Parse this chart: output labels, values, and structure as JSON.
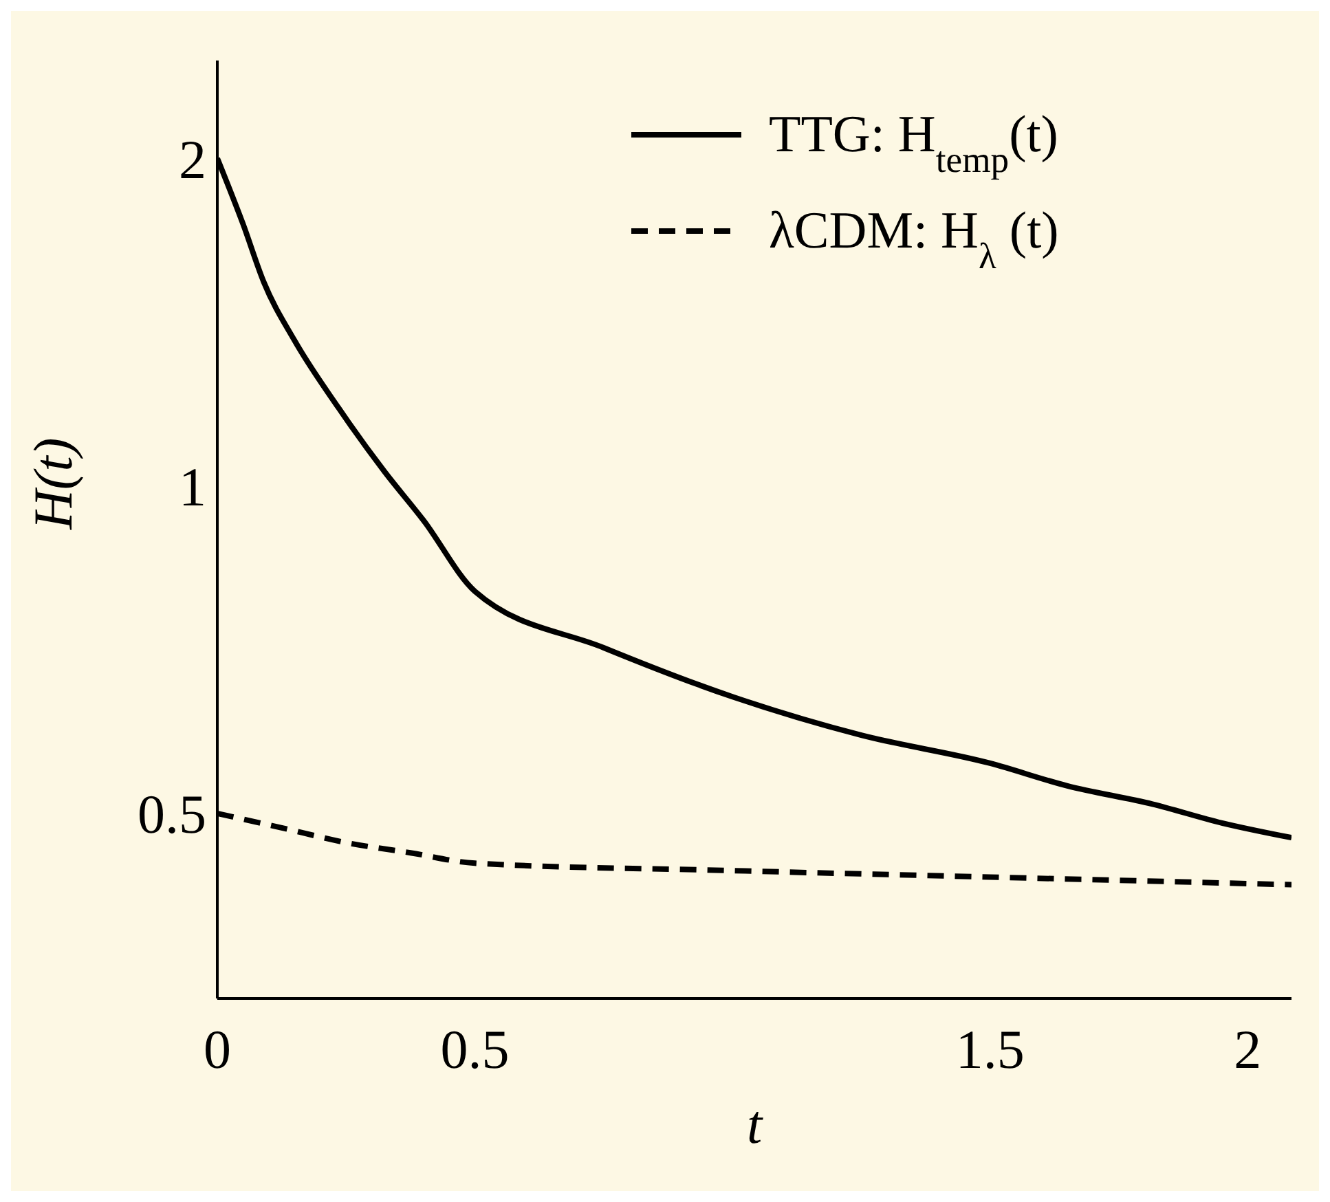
{
  "chart_data": {
    "type": "line",
    "xlabel": "t",
    "ylabel": "H(t)",
    "log": "y",
    "xlim": [
      0,
      2.085
    ],
    "xticks": [
      0,
      0.5,
      1.5,
      2
    ],
    "ylim": [
      0.338,
      2.46
    ],
    "yticks": [
      0.5,
      1,
      2
    ],
    "grid": false,
    "legend": "top right",
    "marker": "none",
    "series": [
      {
        "name": "TTG: H$_{temp}$(t)",
        "color": "#000000",
        "line_style": "solid",
        "x": [
          0,
          0.05,
          0.09,
          0.15,
          0.235,
          0.325,
          0.4,
          0.5,
          0.75,
          1.0,
          1.25,
          1.5,
          1.65,
          1.815,
          1.95,
          2.085
        ],
        "values": [
          2,
          1.74,
          1.54,
          1.36,
          1.18,
          1.03,
          0.93,
          0.8,
          0.71,
          0.64,
          0.59,
          0.556,
          0.53,
          0.51,
          0.49,
          0.475
        ]
      },
      {
        "name": "λCDM: H$_{λ}$ (t)",
        "color": "#000000",
        "line_style": "dashed",
        "x": [
          0,
          0.125,
          0.25,
          0.375,
          0.5,
          1.0,
          1.5,
          1.75,
          2.085
        ],
        "values": [
          0.5,
          0.485,
          0.47,
          0.46,
          0.45,
          0.443,
          0.437,
          0.434,
          0.43
        ]
      }
    ]
  }
}
